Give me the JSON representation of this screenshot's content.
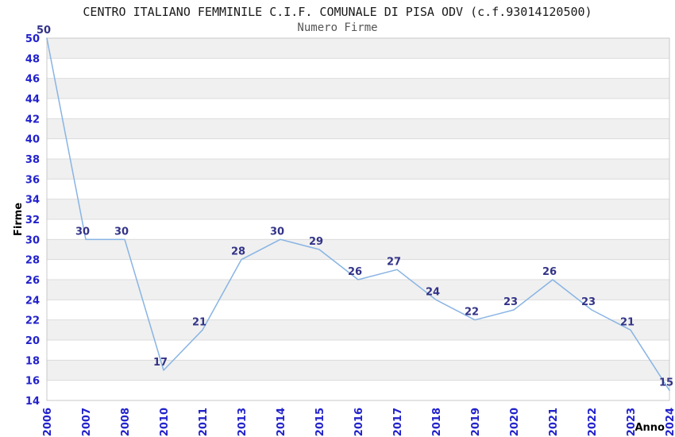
{
  "chart_data": {
    "type": "line",
    "title": "CENTRO ITALIANO FEMMINILE C.I.F. COMUNALE DI PISA ODV (c.f.93014120500)",
    "subtitle": "Numero Firme",
    "xlabel": "Anno",
    "ylabel": "Firme",
    "categories": [
      "2006",
      "2007",
      "2008",
      "2010",
      "2011",
      "2013",
      "2014",
      "2015",
      "2016",
      "2017",
      "2018",
      "2019",
      "2020",
      "2021",
      "2022",
      "2023",
      "2024"
    ],
    "values": [
      50,
      30,
      30,
      17,
      21,
      28,
      30,
      29,
      26,
      27,
      24,
      22,
      23,
      26,
      23,
      21,
      15
    ],
    "ylim": [
      14,
      50
    ],
    "ytick_step": 2,
    "grid": true,
    "legend_position": "none",
    "data_labels_shown": true,
    "colors": {
      "line": "#88b4e4",
      "tick_label": "#2222cc",
      "data_label": "#333388",
      "axis_label": "#000000",
      "band_alt": "#f0f0f0",
      "band_base": "#ffffff",
      "gridline": "#dcdcdc",
      "frame": "#c8c8c8",
      "title": "#1a1a1a",
      "subtitle": "#555555",
      "background": "#ffffff"
    }
  }
}
